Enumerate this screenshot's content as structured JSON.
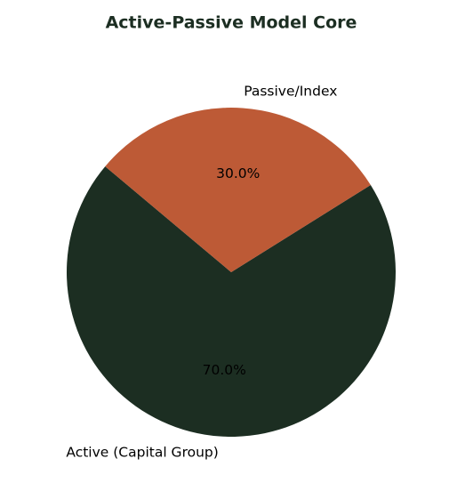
{
  "chart_data": {
    "type": "pie",
    "title": "Active-Passive Model Core",
    "categories": [
      "Active (Capital Group)",
      "Passive/Index"
    ],
    "values": [
      70,
      30
    ],
    "value_labels": [
      "70.0%",
      "30.0%"
    ],
    "colors": [
      "#1c2e22",
      "#bd5a36"
    ]
  }
}
